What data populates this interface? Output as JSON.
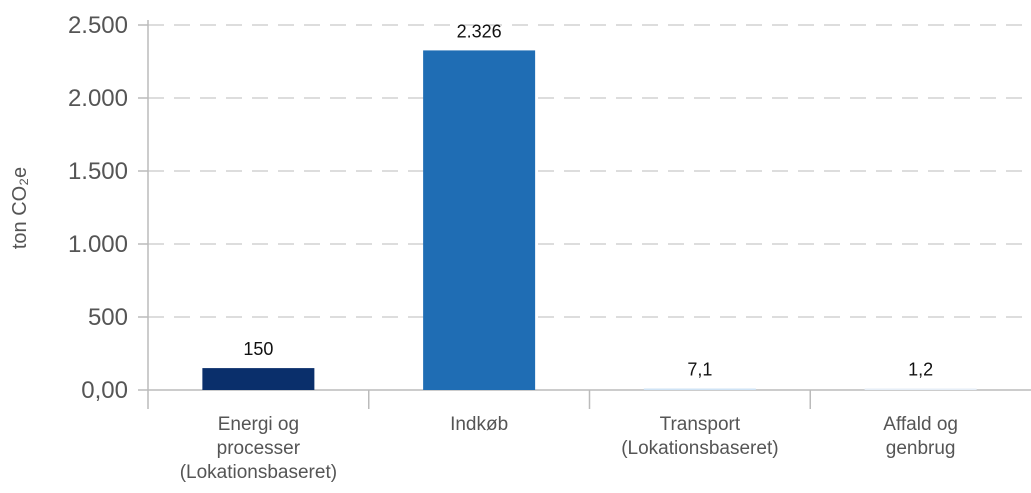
{
  "chart_data": {
    "type": "bar",
    "categories": [
      [
        "Energi og",
        "processer",
        "(Lokationsbaseret)"
      ],
      [
        "Indkøb"
      ],
      [
        "Transport",
        "(Lokationsbaseret)"
      ],
      [
        "Affald og",
        "genbrug"
      ]
    ],
    "values": [
      150,
      2326,
      7.1,
      1.2
    ],
    "data_labels": [
      "150",
      "2.326",
      "7,1",
      "1,2"
    ],
    "bar_colors": [
      "#0a2f6b",
      "#1f6db4",
      "#cfe3f5",
      "#e6eef7"
    ],
    "ylabel": "ton CO₂e",
    "ylim": [
      0,
      2500
    ],
    "yticks": [
      0,
      500,
      1000,
      1500,
      2000,
      2500
    ],
    "ytick_labels": [
      "0,00",
      "500",
      "1.000",
      "1.500",
      "2.000",
      "2.500"
    ],
    "grid": true
  }
}
